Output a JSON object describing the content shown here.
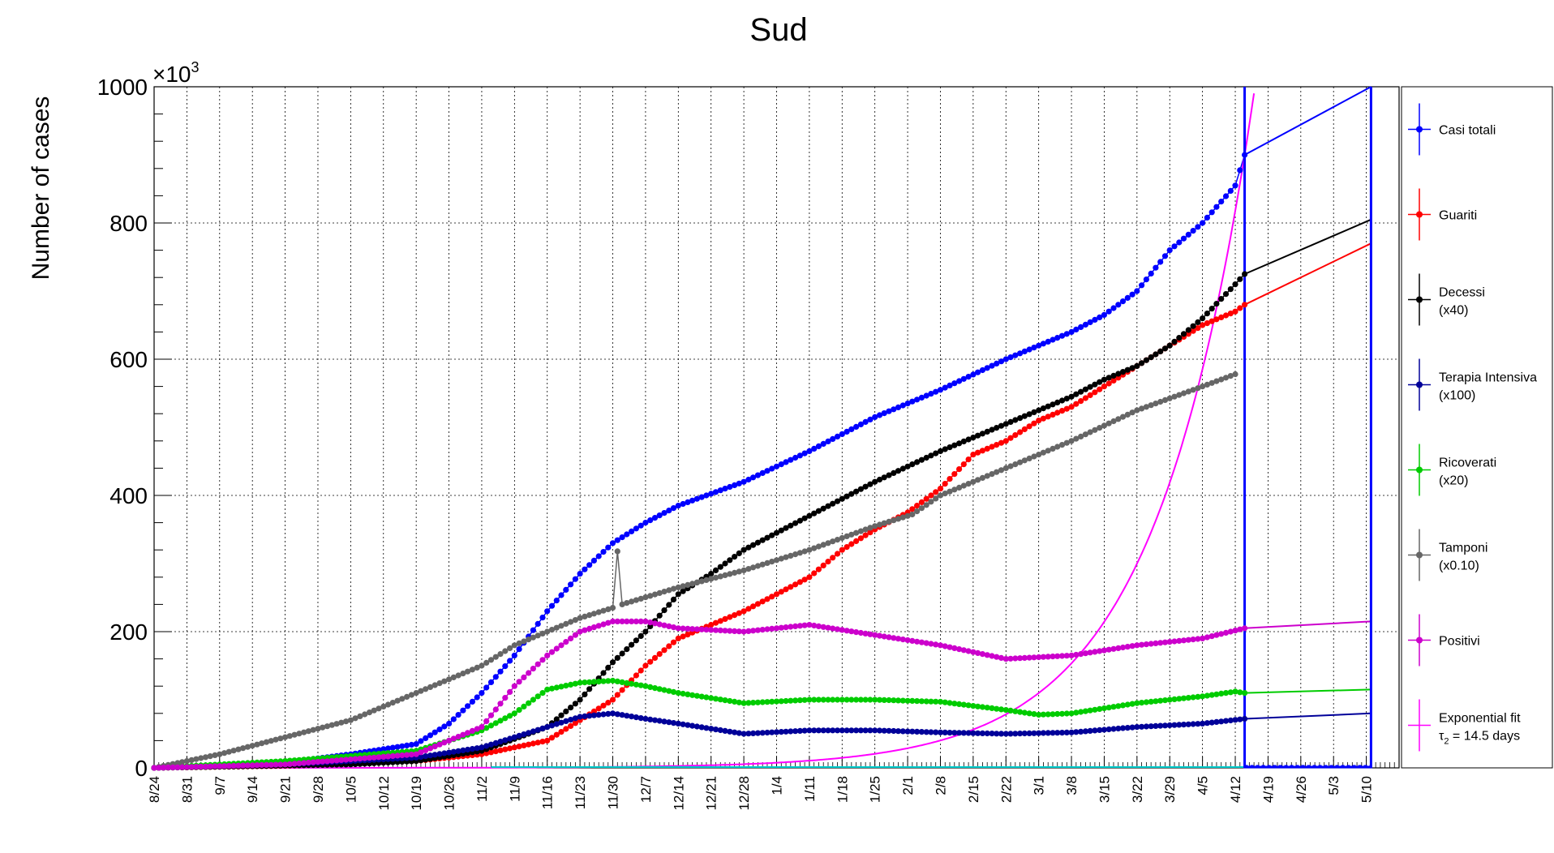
{
  "chart_data": {
    "type": "line",
    "title": "Sud",
    "ylabel": "Number of cases",
    "y_multiplier_label": "×10",
    "y_multiplier_exp": "3",
    "ylim": [
      0,
      1000
    ],
    "yticks": [
      "0",
      "200",
      "400",
      "600",
      "800",
      "1000"
    ],
    "x_tick_labels": [
      "8/24",
      "8/31",
      "9/7",
      "9/14",
      "9/21",
      "9/28",
      "10/5",
      "10/12",
      "10/19",
      "10/26",
      "11/2",
      "11/9",
      "11/16",
      "11/23",
      "11/30",
      "12/7",
      "12/14",
      "12/21",
      "12/28",
      "1/4",
      "1/11",
      "1/18",
      "1/25",
      "2/1",
      "2/8",
      "2/15",
      "2/22",
      "3/1",
      "3/8",
      "3/15",
      "3/22",
      "3/29",
      "4/5",
      "4/12",
      "4/19",
      "4/26",
      "5/3",
      "5/10"
    ],
    "x_days_range": [
      0,
      266
    ],
    "data_end_day": 233,
    "extrapolation_end_day": 260,
    "grid": true,
    "legend_position": "right",
    "series": [
      {
        "name": "Casi totali",
        "color": "#0000ff",
        "points": [
          [
            0,
            0
          ],
          [
            14,
            3
          ],
          [
            28,
            8
          ],
          [
            42,
            20
          ],
          [
            56,
            35
          ],
          [
            63,
            65
          ],
          [
            70,
            110
          ],
          [
            77,
            165
          ],
          [
            84,
            230
          ],
          [
            91,
            285
          ],
          [
            98,
            330
          ],
          [
            105,
            360
          ],
          [
            112,
            385
          ],
          [
            126,
            420
          ],
          [
            140,
            465
          ],
          [
            154,
            515
          ],
          [
            168,
            555
          ],
          [
            182,
            600
          ],
          [
            196,
            640
          ],
          [
            203,
            665
          ],
          [
            210,
            700
          ],
          [
            217,
            760
          ],
          [
            224,
            800
          ],
          [
            231,
            855
          ],
          [
            233,
            900
          ],
          [
            260,
            1000
          ]
        ]
      },
      {
        "name": "Guariti",
        "color": "#ff0000",
        "points": [
          [
            0,
            0
          ],
          [
            28,
            3
          ],
          [
            56,
            10
          ],
          [
            70,
            20
          ],
          [
            84,
            40
          ],
          [
            98,
            100
          ],
          [
            105,
            150
          ],
          [
            112,
            190
          ],
          [
            126,
            230
          ],
          [
            140,
            280
          ],
          [
            147,
            320
          ],
          [
            154,
            350
          ],
          [
            161,
            375
          ],
          [
            168,
            410
          ],
          [
            175,
            460
          ],
          [
            182,
            480
          ],
          [
            189,
            510
          ],
          [
            196,
            530
          ],
          [
            203,
            560
          ],
          [
            210,
            590
          ],
          [
            217,
            620
          ],
          [
            224,
            650
          ],
          [
            231,
            670
          ],
          [
            233,
            680
          ],
          [
            260,
            770
          ]
        ]
      },
      {
        "name": "Decessi",
        "name_line2": "(x40)",
        "color": "#000000",
        "points": [
          [
            0,
            0
          ],
          [
            42,
            5
          ],
          [
            56,
            10
          ],
          [
            70,
            25
          ],
          [
            84,
            60
          ],
          [
            91,
            100
          ],
          [
            98,
            155
          ],
          [
            105,
            200
          ],
          [
            112,
            255
          ],
          [
            119,
            285
          ],
          [
            126,
            320
          ],
          [
            140,
            370
          ],
          [
            154,
            420
          ],
          [
            168,
            465
          ],
          [
            182,
            505
          ],
          [
            196,
            545
          ],
          [
            203,
            570
          ],
          [
            210,
            590
          ],
          [
            217,
            620
          ],
          [
            224,
            660
          ],
          [
            231,
            710
          ],
          [
            233,
            725
          ],
          [
            260,
            805
          ]
        ]
      },
      {
        "name": "Terapia Intensiva",
        "name_line2": "(x100)",
        "color": "#000099",
        "points": [
          [
            0,
            0
          ],
          [
            28,
            5
          ],
          [
            56,
            15
          ],
          [
            70,
            30
          ],
          [
            77,
            45
          ],
          [
            84,
            60
          ],
          [
            91,
            75
          ],
          [
            98,
            80
          ],
          [
            105,
            72
          ],
          [
            112,
            65
          ],
          [
            126,
            50
          ],
          [
            140,
            55
          ],
          [
            154,
            55
          ],
          [
            168,
            52
          ],
          [
            182,
            50
          ],
          [
            196,
            52
          ],
          [
            210,
            60
          ],
          [
            224,
            65
          ],
          [
            233,
            72
          ],
          [
            260,
            80
          ]
        ]
      },
      {
        "name": "Ricoverati",
        "name_line2": "(x20)",
        "color": "#00cc00",
        "points": [
          [
            0,
            0
          ],
          [
            28,
            10
          ],
          [
            56,
            25
          ],
          [
            70,
            55
          ],
          [
            77,
            80
          ],
          [
            84,
            115
          ],
          [
            91,
            125
          ],
          [
            98,
            128
          ],
          [
            105,
            120
          ],
          [
            112,
            110
          ],
          [
            126,
            95
          ],
          [
            140,
            100
          ],
          [
            154,
            100
          ],
          [
            168,
            97
          ],
          [
            182,
            85
          ],
          [
            189,
            78
          ],
          [
            196,
            80
          ],
          [
            210,
            95
          ],
          [
            224,
            105
          ],
          [
            231,
            112
          ],
          [
            233,
            110
          ],
          [
            260,
            115
          ]
        ]
      },
      {
        "name": "Tamponi",
        "name_line2": "(x0.10)",
        "color": "#666666",
        "points": [
          [
            0,
            0
          ],
          [
            14,
            20
          ],
          [
            28,
            45
          ],
          [
            42,
            70
          ],
          [
            56,
            110
          ],
          [
            70,
            150
          ],
          [
            77,
            180
          ],
          [
            84,
            200
          ],
          [
            91,
            220
          ],
          [
            98,
            235
          ],
          [
            99,
            318
          ],
          [
            100,
            240
          ],
          [
            112,
            265
          ],
          [
            126,
            290
          ],
          [
            140,
            320
          ],
          [
            154,
            355
          ],
          [
            162,
            372
          ],
          [
            168,
            400
          ],
          [
            182,
            440
          ],
          [
            196,
            480
          ],
          [
            210,
            525
          ],
          [
            224,
            560
          ],
          [
            231,
            578
          ]
        ]
      },
      {
        "name": "Positivi",
        "color": "#cc00cc",
        "points": [
          [
            0,
            0
          ],
          [
            28,
            5
          ],
          [
            56,
            20
          ],
          [
            70,
            60
          ],
          [
            77,
            120
          ],
          [
            84,
            165
          ],
          [
            91,
            200
          ],
          [
            98,
            215
          ],
          [
            105,
            215
          ],
          [
            112,
            205
          ],
          [
            126,
            200
          ],
          [
            140,
            210
          ],
          [
            154,
            195
          ],
          [
            168,
            180
          ],
          [
            182,
            160
          ],
          [
            196,
            165
          ],
          [
            210,
            180
          ],
          [
            224,
            190
          ],
          [
            233,
            205
          ],
          [
            260,
            215
          ]
        ]
      },
      {
        "name": "Exponential fit",
        "name_line2": "τ",
        "name_line2_sub": "2",
        "name_line2_rest": " = 14.5 days",
        "color": "#ff00ff",
        "tau_days": 14.5,
        "anchor_day": 233,
        "anchor_value": 900
      }
    ]
  }
}
